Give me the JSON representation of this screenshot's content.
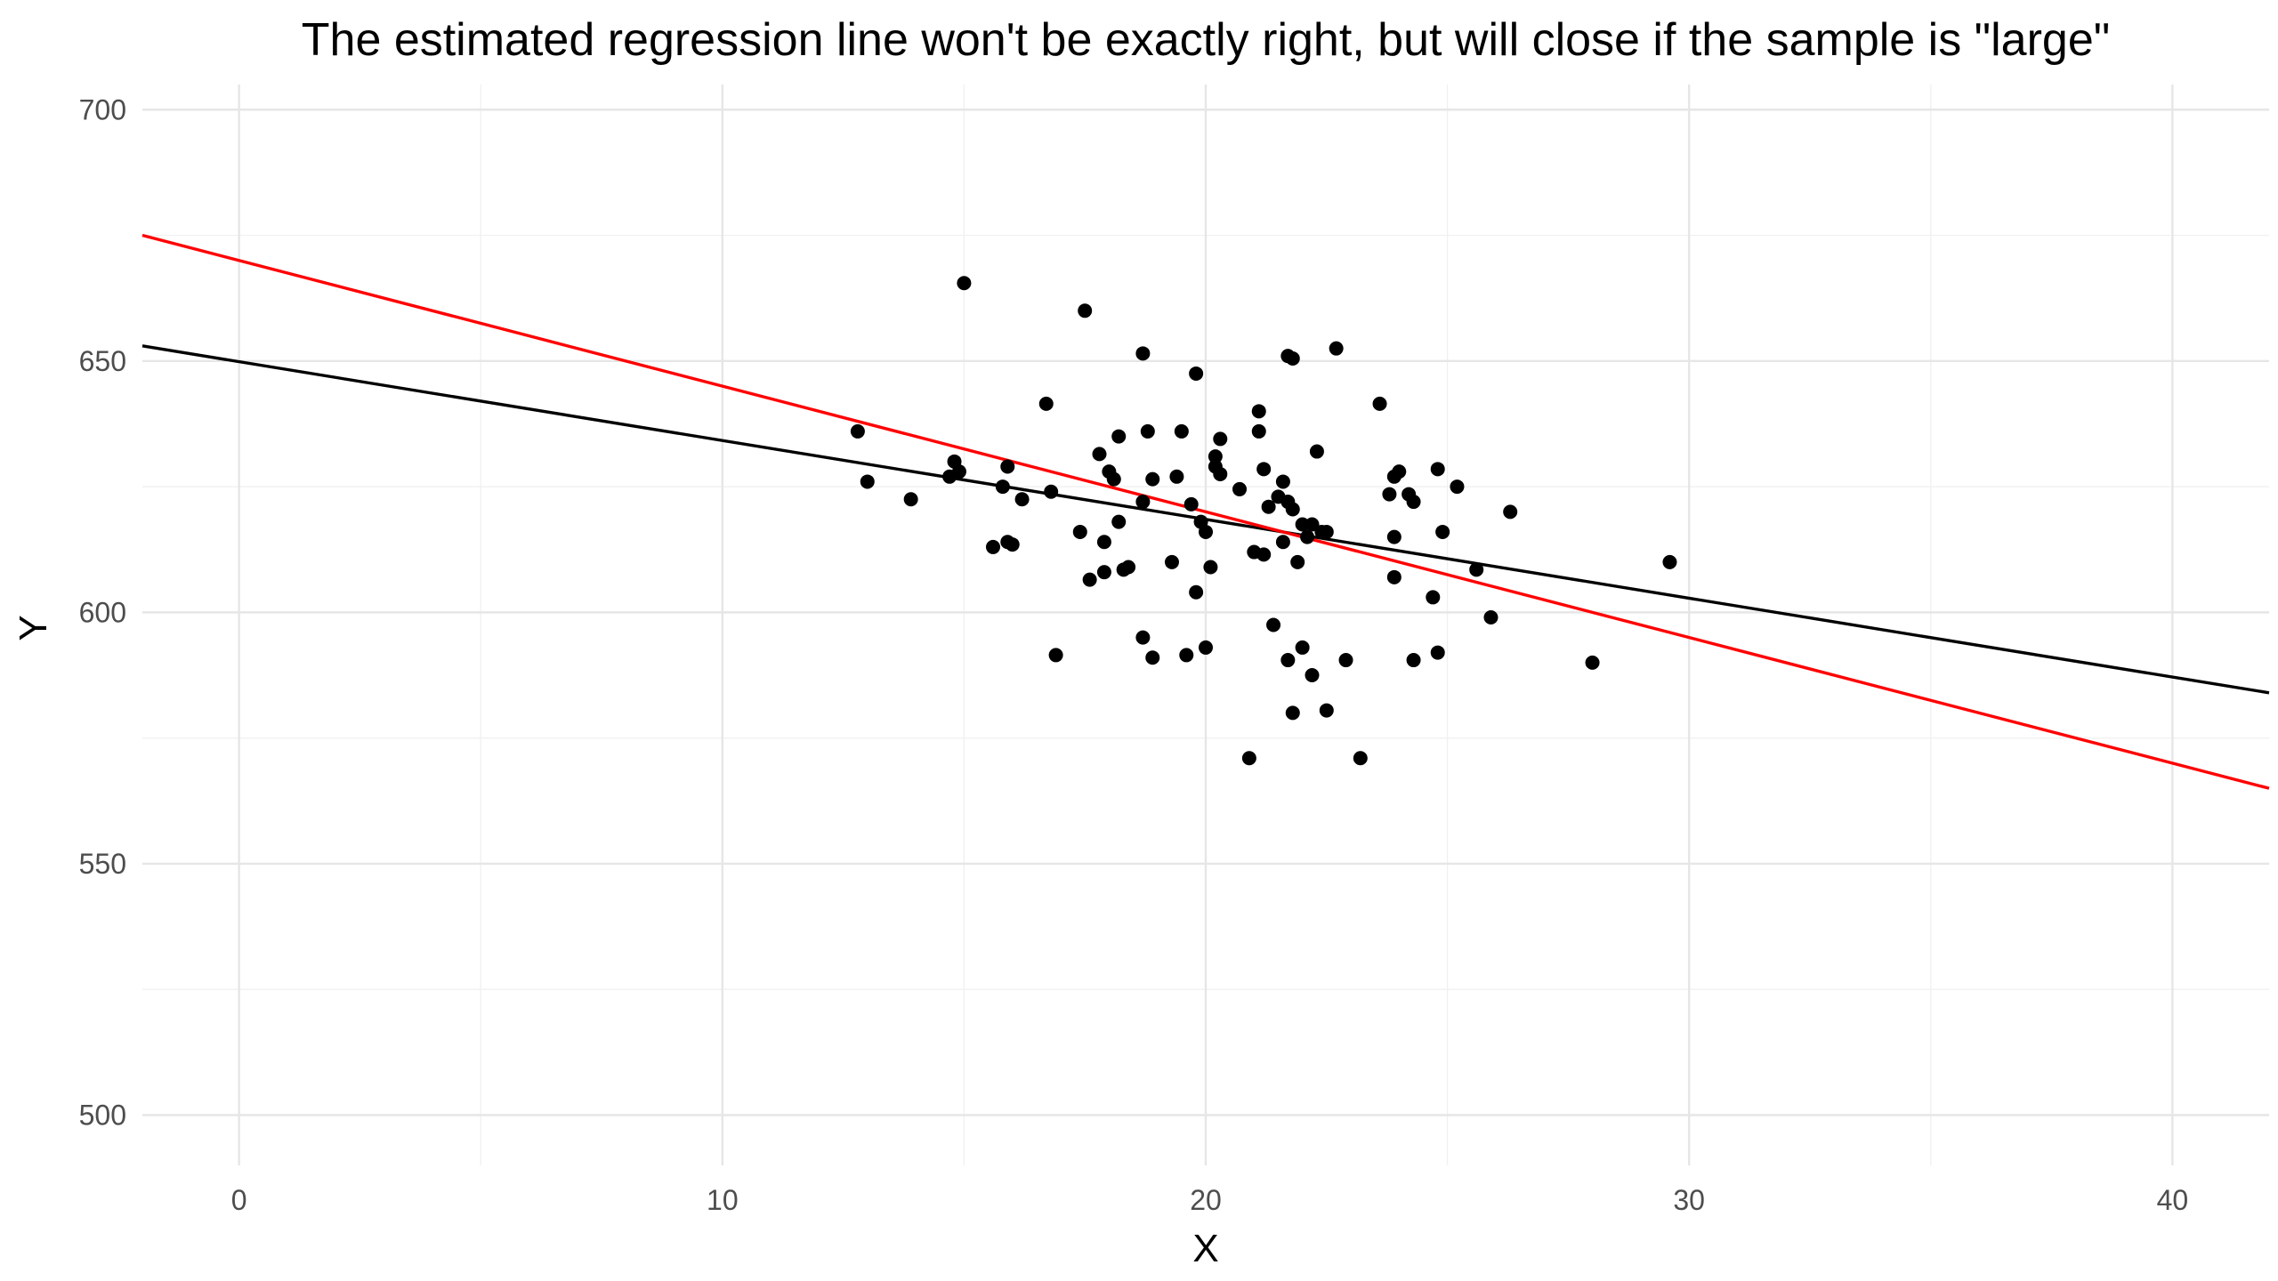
{
  "chart_data": {
    "type": "scatter",
    "title": "The estimated regression line won't be exactly right, but will close if the sample is \"large\"",
    "xlabel": "X",
    "ylabel": "Y",
    "xlim": [
      -2,
      42
    ],
    "ylim": [
      490,
      705
    ],
    "x_ticks": [
      0,
      10,
      20,
      30,
      40
    ],
    "y_ticks": [
      500,
      550,
      600,
      650,
      700
    ],
    "x_tick_labels": [
      "0",
      "10",
      "20",
      "30",
      "40"
    ],
    "y_tick_labels": [
      "500",
      "550",
      "600",
      "650",
      "700"
    ],
    "grid": true,
    "legend": "none",
    "point_color": "#000000",
    "points": [
      [
        12.8,
        636
      ],
      [
        13.0,
        626
      ],
      [
        13.9,
        622.5
      ],
      [
        14.7,
        627
      ],
      [
        14.8,
        630
      ],
      [
        14.9,
        628
      ],
      [
        15.0,
        665.5
      ],
      [
        15.6,
        613
      ],
      [
        15.8,
        625
      ],
      [
        15.9,
        629
      ],
      [
        15.9,
        614
      ],
      [
        16.0,
        613.5
      ],
      [
        16.2,
        622.5
      ],
      [
        16.7,
        641.5
      ],
      [
        16.8,
        624
      ],
      [
        16.9,
        591.5
      ],
      [
        17.4,
        616
      ],
      [
        17.5,
        660
      ],
      [
        17.6,
        606.5
      ],
      [
        17.8,
        631.5
      ],
      [
        17.9,
        614
      ],
      [
        17.9,
        608
      ],
      [
        18.0,
        628
      ],
      [
        18.1,
        626.5
      ],
      [
        18.2,
        635
      ],
      [
        18.2,
        618
      ],
      [
        18.3,
        608.5
      ],
      [
        18.4,
        609
      ],
      [
        18.7,
        651.5
      ],
      [
        18.7,
        595
      ],
      [
        18.7,
        622
      ],
      [
        18.8,
        636
      ],
      [
        18.9,
        626.5
      ],
      [
        18.9,
        591
      ],
      [
        19.3,
        610
      ],
      [
        19.4,
        627
      ],
      [
        19.5,
        636
      ],
      [
        19.6,
        591.5
      ],
      [
        19.7,
        621.5
      ],
      [
        19.8,
        647.5
      ],
      [
        19.8,
        604
      ],
      [
        19.9,
        618
      ],
      [
        20.0,
        616
      ],
      [
        20.0,
        593
      ],
      [
        20.1,
        609
      ],
      [
        20.2,
        631
      ],
      [
        20.2,
        629
      ],
      [
        20.3,
        627.5
      ],
      [
        20.3,
        634.5
      ],
      [
        20.7,
        624.5
      ],
      [
        20.9,
        571
      ],
      [
        21.0,
        612
      ],
      [
        21.1,
        636
      ],
      [
        21.1,
        640
      ],
      [
        21.2,
        628.5
      ],
      [
        21.2,
        611.5
      ],
      [
        21.3,
        621
      ],
      [
        21.4,
        597.5
      ],
      [
        21.5,
        623
      ],
      [
        21.6,
        614
      ],
      [
        21.6,
        626
      ],
      [
        21.7,
        622
      ],
      [
        21.7,
        590.5
      ],
      [
        21.7,
        651
      ],
      [
        21.8,
        650.5
      ],
      [
        21.8,
        620.5
      ],
      [
        21.8,
        580
      ],
      [
        21.9,
        610
      ],
      [
        22.0,
        617.5
      ],
      [
        22.0,
        593
      ],
      [
        22.1,
        615
      ],
      [
        22.2,
        587.5
      ],
      [
        22.2,
        617.5
      ],
      [
        22.3,
        632
      ],
      [
        22.4,
        616
      ],
      [
        22.5,
        580.5
      ],
      [
        22.5,
        616
      ],
      [
        22.7,
        652.5
      ],
      [
        22.9,
        590.5
      ],
      [
        23.2,
        571
      ],
      [
        23.6,
        641.5
      ],
      [
        23.8,
        623.5
      ],
      [
        23.9,
        615
      ],
      [
        23.9,
        607
      ],
      [
        23.9,
        627
      ],
      [
        24.0,
        628
      ],
      [
        24.2,
        623.5
      ],
      [
        24.3,
        622
      ],
      [
        24.3,
        590.5
      ],
      [
        24.7,
        603
      ],
      [
        24.8,
        628.5
      ],
      [
        24.8,
        592
      ],
      [
        24.9,
        616
      ],
      [
        25.2,
        625
      ],
      [
        25.6,
        608.5
      ],
      [
        25.9,
        599
      ],
      [
        26.3,
        620
      ],
      [
        28.0,
        590
      ],
      [
        29.6,
        610
      ]
    ],
    "series": [
      {
        "values": [
          [
            -2,
            653
          ],
          [
            42,
            584
          ]
        ],
        "color": "#000000"
      },
      {
        "values": [
          [
            -2,
            675
          ],
          [
            42,
            565
          ]
        ],
        "color": "#ff0000"
      }
    ]
  }
}
